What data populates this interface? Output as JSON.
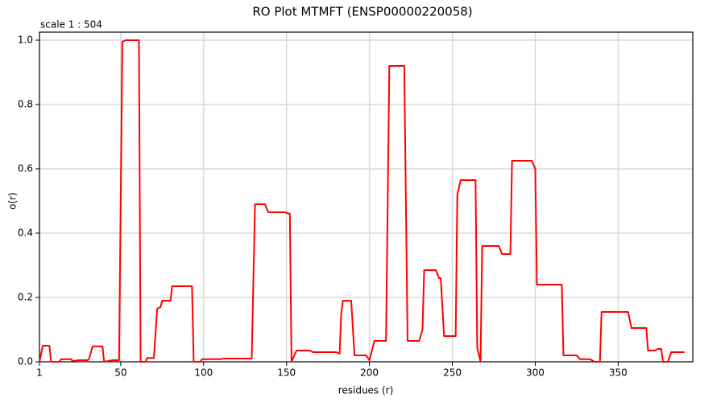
{
  "chart_data": {
    "type": "line",
    "title": "RO Plot MTMFT (ENSP00000220058)",
    "annotation": "scale 1 : 504",
    "xlabel": "residues (r)",
    "ylabel": "o(r)",
    "color": "#ff0000",
    "grid": true,
    "xlim": [
      1,
      395
    ],
    "xticks": [
      1,
      50,
      100,
      150,
      200,
      250,
      300,
      350
    ],
    "ylim": [
      0,
      1.025
    ],
    "yticks": [
      {
        "value": 0,
        "label": "0.0"
      },
      0.2,
      0.4,
      0.6,
      0.8,
      {
        "value": 1,
        "label": "1.0"
      }
    ],
    "x": [
      1,
      3,
      7,
      8,
      13,
      14,
      20,
      21,
      23,
      24,
      30,
      31,
      33,
      39,
      40,
      45,
      49,
      51,
      53,
      61,
      62,
      65,
      66,
      70,
      72,
      74,
      75,
      80,
      81,
      93,
      94,
      98,
      99,
      110,
      112,
      129,
      131,
      137,
      139,
      149,
      152,
      153,
      156,
      164,
      166,
      180,
      182,
      183,
      184,
      189,
      191,
      198,
      200,
      203,
      210,
      212,
      221,
      223,
      230,
      232,
      233,
      240,
      242,
      243,
      245,
      252,
      253,
      255,
      264,
      265,
      267,
      268,
      278,
      280,
      285,
      286,
      298,
      300,
      301,
      316,
      317,
      325,
      327,
      333,
      336,
      339,
      340,
      356,
      358,
      367,
      368,
      372,
      374,
      376,
      377,
      380,
      382,
      390
    ],
    "values": [
      0,
      0.05,
      0.05,
      0,
      0,
      0.008,
      0.008,
      0.003,
      0.003,
      0.005,
      0.005,
      0.01,
      0.048,
      0.048,
      0,
      0.005,
      0.005,
      0.995,
      1,
      1,
      0,
      0,
      0.012,
      0.012,
      0.165,
      0.17,
      0.19,
      0.19,
      0.235,
      0.235,
      0,
      0,
      0.008,
      0.008,
      0.01,
      0.01,
      0.49,
      0.49,
      0.465,
      0.465,
      0.46,
      0,
      0.035,
      0.035,
      0.03,
      0.03,
      0.025,
      0.15,
      0.19,
      0.19,
      0.02,
      0.02,
      0.005,
      0.065,
      0.065,
      0.92,
      0.92,
      0.065,
      0.065,
      0.1,
      0.285,
      0.285,
      0.26,
      0.26,
      0.08,
      0.08,
      0.52,
      0.565,
      0.565,
      0.045,
      0,
      0.36,
      0.36,
      0.335,
      0.335,
      0.625,
      0.625,
      0.6,
      0.24,
      0.24,
      0.02,
      0.02,
      0.008,
      0.008,
      0,
      0,
      0.155,
      0.155,
      0.105,
      0.105,
      0.035,
      0.035,
      0.04,
      0.04,
      0,
      0,
      0.03,
      0.03
    ]
  }
}
